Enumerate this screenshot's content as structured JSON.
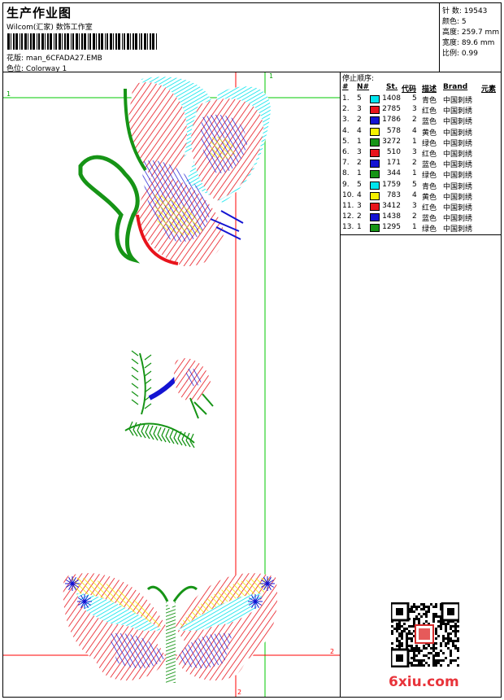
{
  "header": {
    "title": "生产作业图",
    "company": "Wilcom(汇家) 数饰工作室",
    "design_file_label": "花版:",
    "design_file": "man_6CFADA27.EMB",
    "colorway_label": "色位:",
    "colorway": "Colorway 1"
  },
  "stats": {
    "stitches_label": "针 数:",
    "stitches": "19543",
    "colors_label": "颜色:",
    "colors": "5",
    "height_label": "高度:",
    "height": "259.7 mm",
    "width_label": "宽度:",
    "width": "89.6 mm",
    "scale_label": "比例:",
    "scale": "0.99"
  },
  "stop_sequence": {
    "title": "停止顺序:",
    "headers": {
      "index": "#",
      "no": "N#",
      "stitches": "St.",
      "code": "代码",
      "description": "描述",
      "brand": "Brand",
      "element": "元素"
    },
    "rows": [
      {
        "index": "1.",
        "no": "5",
        "color": "#00e5ee",
        "stitches": "1408",
        "code": "5",
        "description": "青色",
        "brand": "中国刺绣"
      },
      {
        "index": "2.",
        "no": "3",
        "color": "#e8141c",
        "stitches": "2785",
        "code": "3",
        "description": "红色",
        "brand": "中国刺绣"
      },
      {
        "index": "3.",
        "no": "2",
        "color": "#1414d2",
        "stitches": "1786",
        "code": "2",
        "description": "蓝色",
        "brand": "中国刺绣"
      },
      {
        "index": "4.",
        "no": "4",
        "color": "#f5f000",
        "stitches": "578",
        "code": "4",
        "description": "黄色",
        "brand": "中国刺绣"
      },
      {
        "index": "5.",
        "no": "1",
        "color": "#169416",
        "stitches": "3272",
        "code": "1",
        "description": "绿色",
        "brand": "中国刺绣"
      },
      {
        "index": "6.",
        "no": "3",
        "color": "#e8141c",
        "stitches": "510",
        "code": "3",
        "description": "红色",
        "brand": "中国刺绣"
      },
      {
        "index": "7.",
        "no": "2",
        "color": "#1414d2",
        "stitches": "171",
        "code": "2",
        "description": "蓝色",
        "brand": "中国刺绣"
      },
      {
        "index": "8.",
        "no": "1",
        "color": "#169416",
        "stitches": "344",
        "code": "1",
        "description": "绿色",
        "brand": "中国刺绣"
      },
      {
        "index": "9.",
        "no": "5",
        "color": "#00e5ee",
        "stitches": "1759",
        "code": "5",
        "description": "青色",
        "brand": "中国刺绣"
      },
      {
        "index": "10.",
        "no": "4",
        "color": "#f5f000",
        "stitches": "783",
        "code": "4",
        "description": "黄色",
        "brand": "中国刺绣"
      },
      {
        "index": "11.",
        "no": "3",
        "color": "#e8141c",
        "stitches": "3412",
        "code": "3",
        "description": "红色",
        "brand": "中国刺绣"
      },
      {
        "index": "12.",
        "no": "2",
        "color": "#1414d2",
        "stitches": "1438",
        "code": "2",
        "description": "蓝色",
        "brand": "中国刺绣"
      },
      {
        "index": "13.",
        "no": "1",
        "color": "#169416",
        "stitches": "1295",
        "code": "1",
        "description": "绿色",
        "brand": "中国刺绣"
      }
    ]
  },
  "canvas": {
    "guide_color": "#ff0000",
    "guide2_color": "#00c800",
    "marker_1": "1",
    "marker_2": "2"
  },
  "watermark": "6xiu.com",
  "qr_seal": "QR-code-with-red-seal"
}
